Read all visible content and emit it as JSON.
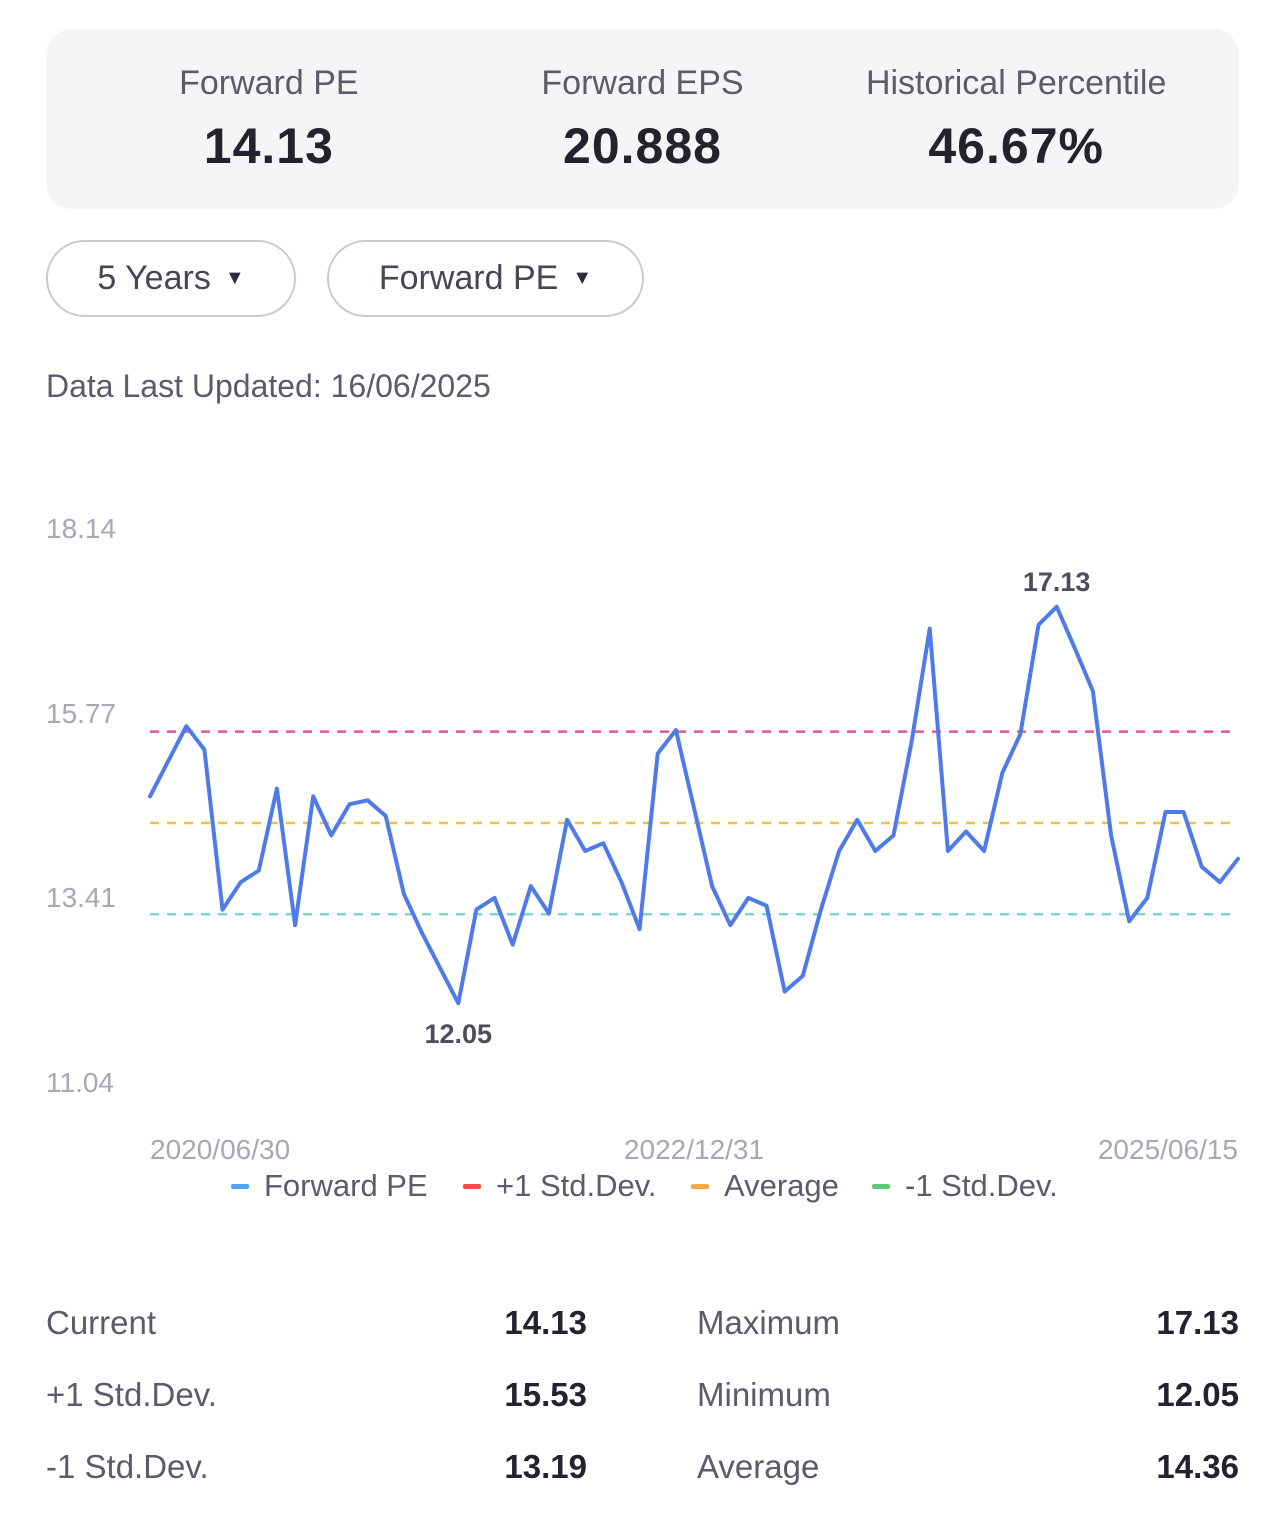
{
  "summary": {
    "metrics": [
      {
        "label": "Forward PE",
        "value": "14.13"
      },
      {
        "label": "Forward EPS",
        "value": "20.888"
      },
      {
        "label": "Historical Percentile",
        "value": "46.67%"
      }
    ]
  },
  "filters": {
    "period": "5 Years",
    "metric": "Forward PE"
  },
  "updated": "Data Last Updated: 16/06/2025",
  "colors": {
    "series": "#4f7bea",
    "plus_std": "#e0569b",
    "average": "#f0c33c",
    "minus_std": "#7fd6cc",
    "legend_series": "#4aa8f5",
    "legend_plus_std": "#e5534b",
    "legend_average": "#f5a942",
    "legend_minus_std": "#5cc878"
  },
  "chart_data": {
    "type": "line",
    "title": "",
    "xlabel": "",
    "ylabel": "",
    "ylim": [
      11.04,
      18.14
    ],
    "y_ticks": [
      "18.14",
      "15.77",
      "13.41",
      "11.04"
    ],
    "x_tick_labels": [
      "2020/06/30",
      "2022/12/31",
      "2025/06/15"
    ],
    "x_start": "2020/06/30",
    "x_end": "2025/06/15",
    "series": [
      {
        "name": "Forward PE",
        "values": [
          14.7,
          15.15,
          15.6,
          15.3,
          13.25,
          13.6,
          13.75,
          14.8,
          13.05,
          14.7,
          14.2,
          14.6,
          14.65,
          14.45,
          13.45,
          12.95,
          12.5,
          12.05,
          13.25,
          13.4,
          12.8,
          13.55,
          13.2,
          14.4,
          14.0,
          14.1,
          13.6,
          13.0,
          15.25,
          15.55,
          14.55,
          13.55,
          13.05,
          13.4,
          13.3,
          12.2,
          12.4,
          13.25,
          14.0,
          14.4,
          14.0,
          14.2,
          15.4,
          16.85,
          14.0,
          14.25,
          14.0,
          15.0,
          15.5,
          16.9,
          17.13,
          16.6,
          16.05,
          14.2,
          13.1,
          13.4,
          14.5,
          14.5,
          13.8,
          13.6,
          13.9
        ]
      },
      {
        "name": "+1 Std.Dev.",
        "value": 15.53
      },
      {
        "name": "Average",
        "value": 14.36
      },
      {
        "name": "-1 Std.Dev.",
        "value": 13.19
      }
    ],
    "annotations": [
      {
        "text": "12.05",
        "index": 17
      },
      {
        "text": "17.13",
        "index": 50
      }
    ],
    "legend": [
      "Forward PE",
      "+1 Std.Dev.",
      "Average",
      "-1 Std.Dev."
    ],
    "legend_position": "bottom",
    "grid": false
  },
  "stats": {
    "left": [
      {
        "label": "Current",
        "value": "14.13"
      },
      {
        "label": "+1 Std.Dev.",
        "value": "15.53"
      },
      {
        "label": "-1 Std.Dev.",
        "value": "13.19"
      }
    ],
    "right": [
      {
        "label": "Maximum",
        "value": "17.13"
      },
      {
        "label": "Minimum",
        "value": "12.05"
      },
      {
        "label": "Average",
        "value": "14.36"
      }
    ]
  }
}
